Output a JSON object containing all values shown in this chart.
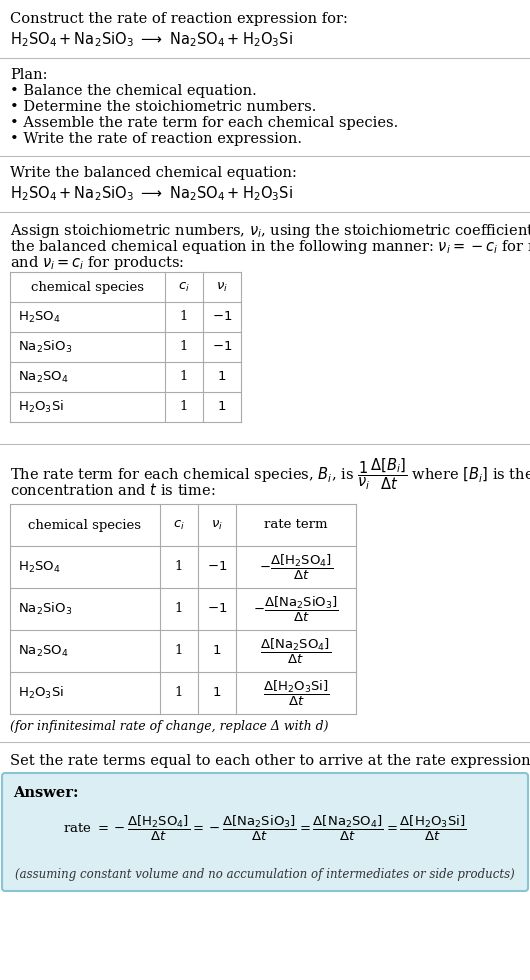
{
  "bg_color": "#ffffff",
  "answer_bg": "#daeef3",
  "answer_border": "#89c4d4",
  "sep_color": "#bbbbbb",
  "table_line_color": "#aaaaaa",
  "title_line1": "Construct the rate of reaction expression for:",
  "plan_header": "Plan:",
  "plan_items": [
    "• Balance the chemical equation.",
    "• Determine the stoichiometric numbers.",
    "• Assemble the rate term for each chemical species.",
    "• Write the rate of reaction expression."
  ],
  "balanced_header": "Write the balanced chemical equation:",
  "stoich_text1": "Assign stoichiometric numbers, νᵢ, using the stoichiometric coefficients, cᵢ, from",
  "stoich_text2": "the balanced chemical equation in the following manner: νᵢ = −cᵢ for reactants",
  "stoich_text3": "and νᵢ = cᵢ for products:",
  "rate_text1": "The rate term for each chemical species, Bᵢ, is",
  "rate_text2": "where [Bᵢ] is the amount",
  "rate_text3": "concentration and t is time:",
  "delta_note": "(for infinitesimal rate of change, replace Δ with d)",
  "set_equal_text": "Set the rate terms equal to each other to arrive at the rate expression:",
  "answer_label": "Answer:",
  "answer_note": "(assuming constant volume and no accumulation of intermediates or side products)"
}
